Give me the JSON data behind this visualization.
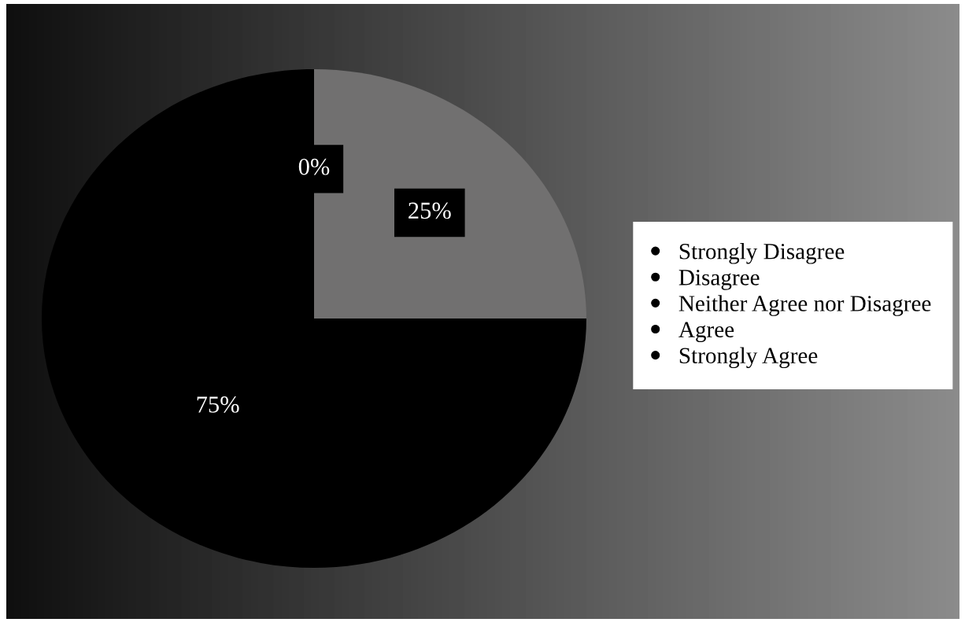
{
  "chart_data": {
    "type": "pie",
    "categories": [
      "Strongly Disagree",
      "Disagree",
      "Neither Agree nor Disagree",
      "Agree",
      "Strongly Agree"
    ],
    "values": [
      0,
      0,
      0,
      25,
      75
    ],
    "colors": [
      "#a5a5a5",
      "#d9d9d9",
      "#3f3f3f",
      "#717070",
      "#000000"
    ],
    "value_labels": [
      null,
      null,
      "0%",
      "25%",
      "75%"
    ],
    "legend": "right"
  }
}
